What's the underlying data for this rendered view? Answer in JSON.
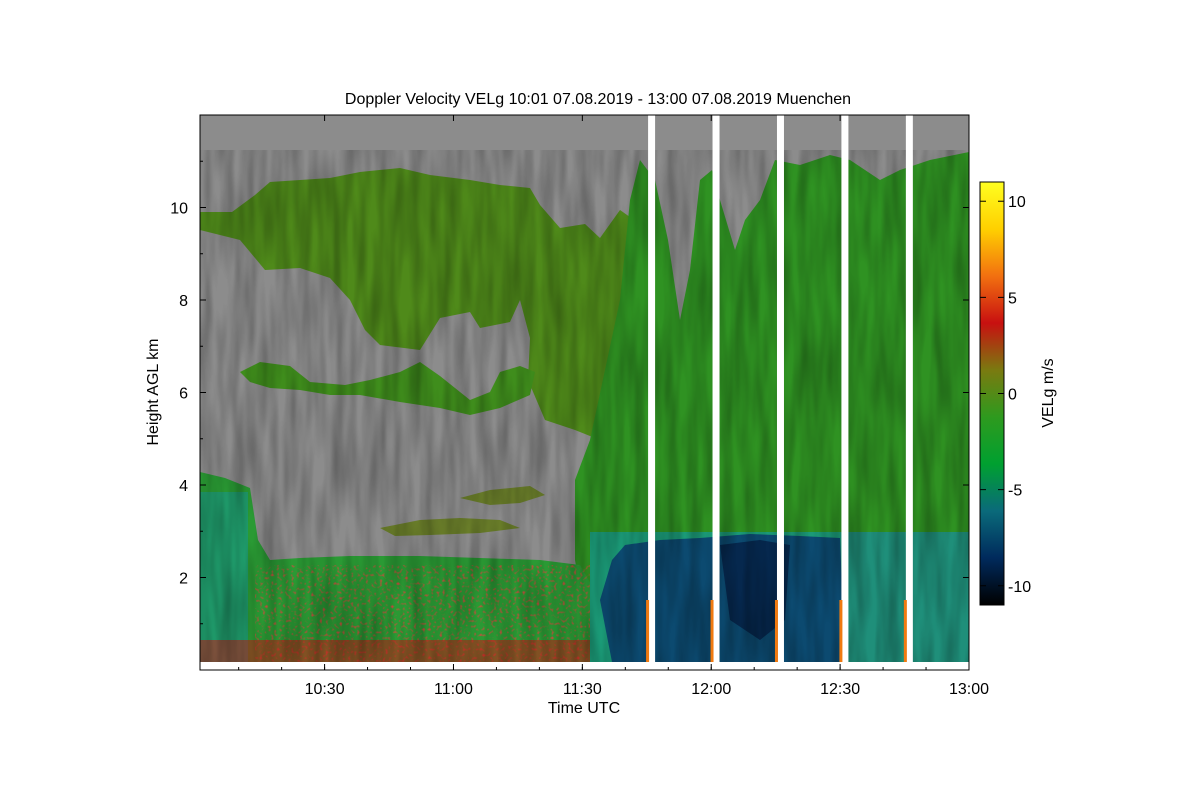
{
  "chart_data": {
    "type": "heatmap",
    "title": "Doppler Velocity VELg   10:01 07.08.2019 - 13:00 07.08.2019 Muenchen",
    "xlabel": "Time UTC",
    "ylabel": "Height AGL km",
    "x_range": [
      "10:01",
      "13:00"
    ],
    "x_ticks": [
      "10:30",
      "11:00",
      "11:30",
      "12:00",
      "12:30",
      "13:00"
    ],
    "y_range": [
      0,
      12
    ],
    "y_ticks": [
      "2",
      "4",
      "6",
      "8",
      "10"
    ],
    "colorbar": {
      "label": "VELg m/s",
      "range": [
        -11,
        11
      ],
      "ticks": [
        "10",
        "5",
        "0",
        "-5",
        "-10"
      ],
      "colors": [
        "#000000",
        "#002a5c",
        "#0a6a7a",
        "#00a030",
        "#2e9a1e",
        "#7a7a10",
        "#c81010",
        "#f27010",
        "#ffd000",
        "#ffff20"
      ]
    },
    "no_data_color": "#8c8c8c",
    "gaps": [
      "11:46",
      "12:01",
      "12:16",
      "12:31",
      "12:46"
    ]
  }
}
